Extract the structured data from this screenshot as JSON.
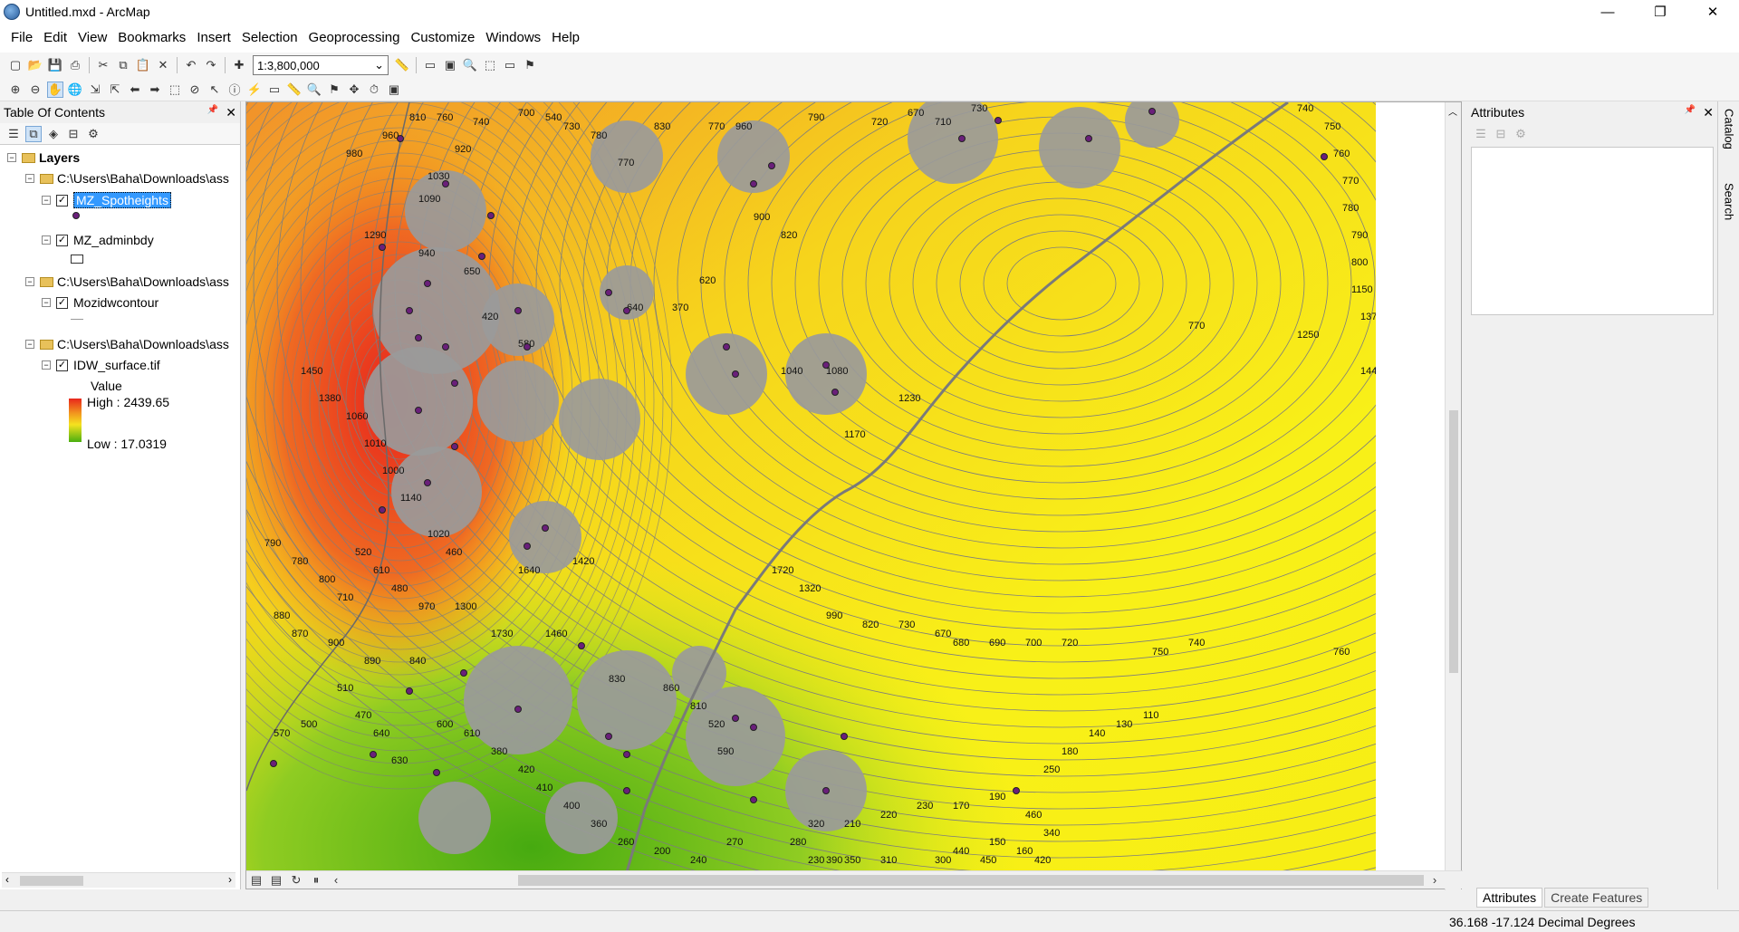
{
  "window": {
    "title": "Untitled.mxd - ArcMap",
    "minimize_glyph": "—",
    "restore_glyph": "❐",
    "close_glyph": "✕"
  },
  "menu": [
    "File",
    "Edit",
    "View",
    "Bookmarks",
    "Insert",
    "Selection",
    "Geoprocessing",
    "Customize",
    "Windows",
    "Help"
  ],
  "toolbar": {
    "scale_value": "1:3,800,000",
    "scale_dropdown_glyph": "⌄",
    "icons_row1": [
      "new-icon",
      "open-icon",
      "save-icon",
      "print-icon",
      "cut-icon",
      "copy-icon",
      "paste-icon",
      "delete-icon",
      "undo-icon",
      "redo-icon",
      "add-data-icon"
    ],
    "icons_row2": [
      "zoom-in-icon",
      "zoom-out-icon",
      "pan-icon",
      "full-extent-icon",
      "fixed-zoom-in-icon",
      "fixed-zoom-out-icon",
      "back-icon",
      "forward-icon",
      "select-features-icon",
      "clear-selection-icon",
      "select-elements-icon",
      "identify-icon",
      "hyperlink-icon",
      "html-popup-icon",
      "measure-icon",
      "find-icon",
      "find-route-icon",
      "goto-xy-icon",
      "time-slider-icon",
      "create-viewer-icon"
    ],
    "glyphs": {
      "new": "▢",
      "open": "📂",
      "save": "💾",
      "print": "⎙",
      "cut": "✂",
      "copy": "⧉",
      "paste": "📋",
      "delete": "✕",
      "undo": "↶",
      "redo": "↷",
      "add_data": "✚",
      "zoom_in": "⊕",
      "zoom_out": "⊖",
      "pan": "✋",
      "full_extent": "🌐",
      "fixed_zoom_in": "⇲",
      "fixed_zoom_out": "⇱",
      "back": "⬅",
      "forward": "➡",
      "select": "⬚",
      "clear_selection": "⊘",
      "select_elements": "↖",
      "identify": "ⓘ",
      "hyperlink": "⚡",
      "html_popup": "▭",
      "measure": "📏",
      "find": "🔍",
      "route": "⚑",
      "goto_xy": "✥",
      "time_slider": "⏱",
      "viewer": "▣"
    }
  },
  "toc": {
    "title": "Table Of Contents",
    "pin_glyph": "📌",
    "close_glyph": "✕",
    "tool_glyphs": [
      "☰",
      "⧉",
      "◈",
      "⊟",
      "⚙"
    ],
    "root_label": "Layers",
    "groups": [
      {
        "path": "C:\\Users\\Baha\\Downloads\\ass",
        "layer": "MZ_Spotheights",
        "symbol": "point"
      },
      {
        "path": null,
        "layer": "MZ_adminbdy",
        "symbol": "polygon"
      },
      {
        "path": "C:\\Users\\Baha\\Downloads\\ass",
        "layer": "Mozidwcontour",
        "symbol": "line"
      },
      {
        "path": "C:\\Users\\Baha\\Downloads\\ass",
        "layer": "IDW_surface.tif",
        "symbol": "raster"
      }
    ],
    "raster_legend": {
      "heading": "Value",
      "high": "High : 2439.65",
      "low": "Low : 17.0319",
      "high_color": "#e8261c",
      "mid_color": "#f5e21f",
      "low_color": "#4aaf10"
    },
    "checkmark": "✓",
    "collapse_glyph": "−"
  },
  "map": {
    "colors": {
      "yellow": "#f7ee14",
      "orange": "#f29a1e",
      "red": "#e8261c",
      "green": "#52b414",
      "grey": "#9a9a9a",
      "contour": "#7d7d7d",
      "point": "#6a1f7a"
    },
    "contour_labels": [
      "980",
      "960",
      "810",
      "760",
      "740",
      "920",
      "1030",
      "700",
      "540",
      "730",
      "780",
      "770",
      "830",
      "770",
      "960",
      "900",
      "820",
      "790",
      "720",
      "670",
      "710",
      "730",
      "740",
      "750",
      "760",
      "770",
      "780",
      "790",
      "800",
      "1150",
      "1370",
      "1250",
      "1440",
      "1290",
      "1090",
      "940",
      "650",
      "420",
      "580",
      "640",
      "370",
      "620",
      "1040",
      "1080",
      "1170",
      "1230",
      "1450",
      "1380",
      "1060",
      "1010",
      "1000",
      "1140",
      "1020",
      "460",
      "520",
      "610",
      "480",
      "970",
      "1300",
      "1640",
      "1460",
      "1420",
      "1730",
      "1720",
      "1320",
      "990",
      "820",
      "730",
      "670",
      "680",
      "690",
      "700",
      "720",
      "740",
      "750",
      "760",
      "770",
      "790",
      "780",
      "800",
      "710",
      "880",
      "870",
      "900",
      "890",
      "840",
      "830",
      "860",
      "810",
      "520",
      "590",
      "570",
      "500",
      "510",
      "470",
      "640",
      "630",
      "600",
      "610",
      "380",
      "420",
      "410",
      "400",
      "360",
      "260",
      "200",
      "240",
      "270",
      "280",
      "320",
      "210",
      "220",
      "230",
      "170",
      "190",
      "250",
      "180",
      "140",
      "130",
      "110",
      "150",
      "160",
      "340",
      "440",
      "450",
      "420",
      "460",
      "300",
      "310",
      "350",
      "390",
      "230"
    ],
    "nav_glyphs": {
      "layout": "▤",
      "refresh": "↻",
      "pause": "⏸",
      "left": "‹",
      "right": "›",
      "up": "︿",
      "down": "﹀"
    }
  },
  "attributes": {
    "title": "Attributes",
    "pin_glyph": "📌",
    "close_glyph": "✕"
  },
  "side_tabs": [
    "Catalog",
    "Search"
  ],
  "bottom_tabs": [
    "Attributes",
    "Create Features"
  ],
  "status": {
    "coords": "36.168  -17.124 Decimal Degrees"
  }
}
